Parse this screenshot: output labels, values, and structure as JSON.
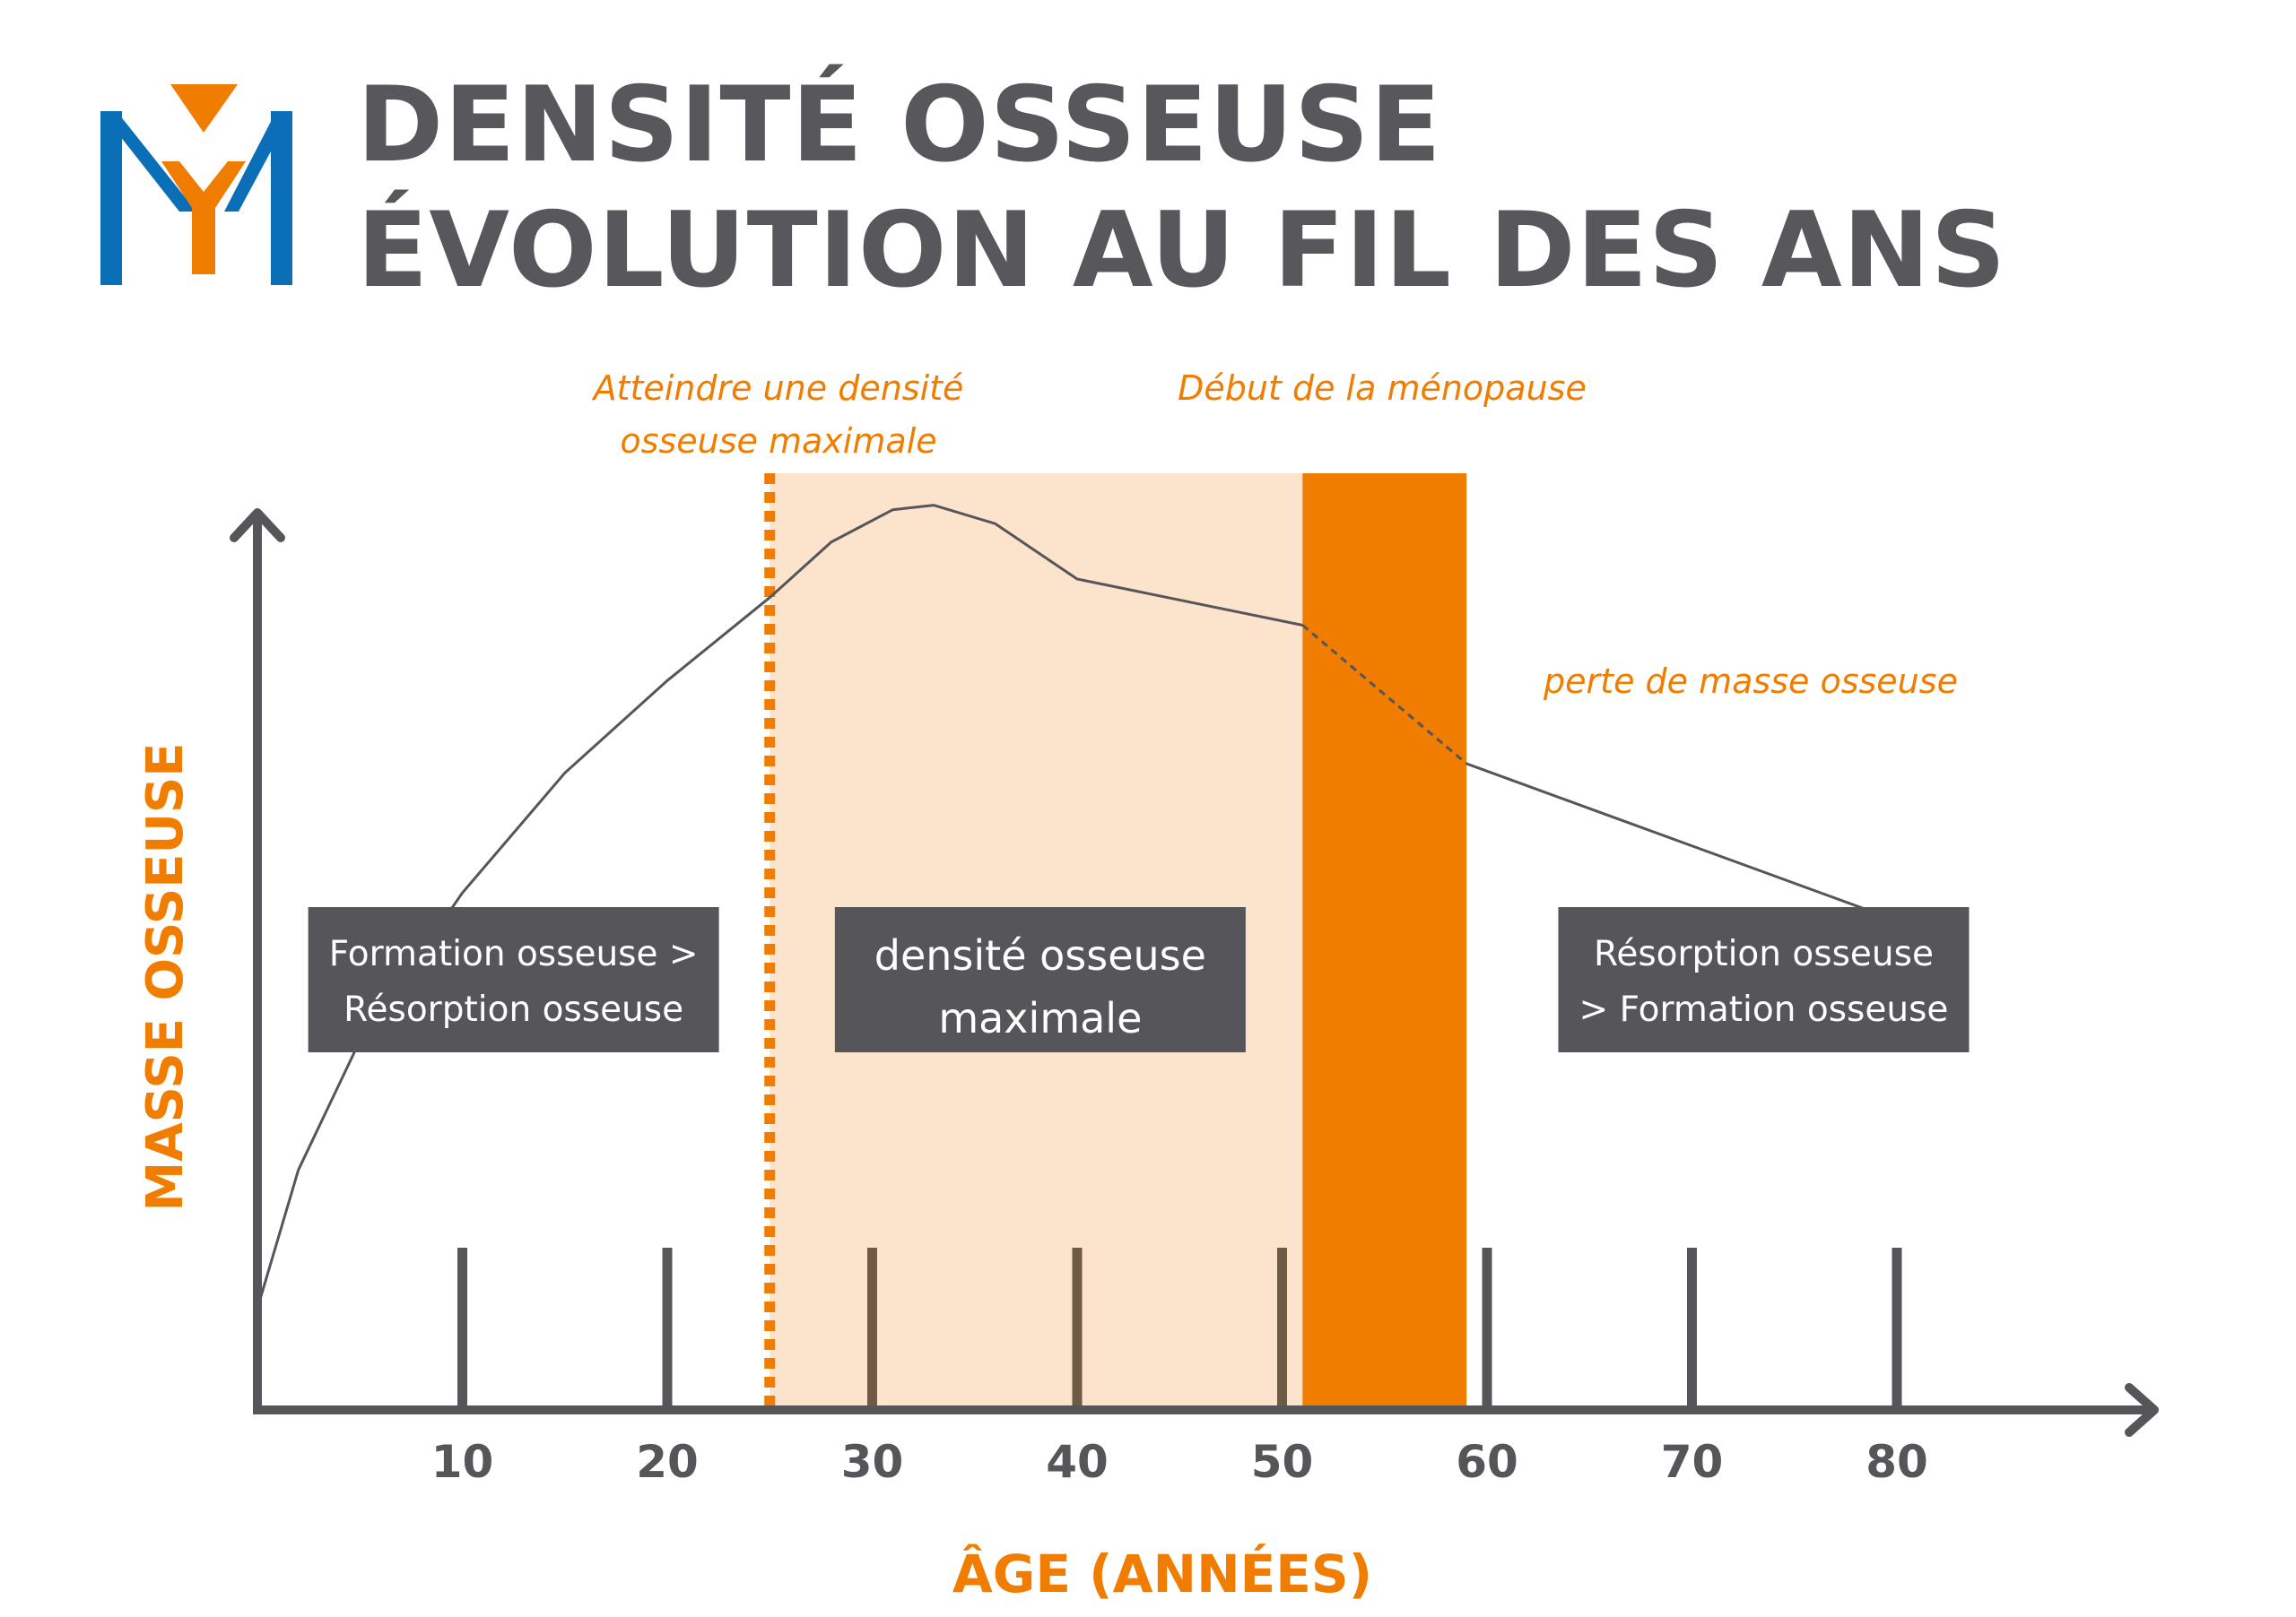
{
  "header": {
    "title_line1": "DENSITÉ OSSEUSE",
    "title_line2": "ÉVOLUTION AU FIL DES ANS",
    "logo_icon": "my-monogram-logo"
  },
  "colors": {
    "title": "#57575c",
    "orange": "#f07c00",
    "band_light": "#fbe3cc",
    "box": "#55555a",
    "axis": "#55555a",
    "curve": "#55555a",
    "brand_blue": "#0b6fb8"
  },
  "chart_data": {
    "type": "line",
    "title": "DENSITÉ OSSEUSE ÉVOLUTION AU FIL DES ANS",
    "xlabel": "ÂGE (ANNÉES)",
    "ylabel": "MASSE OSSEUSE",
    "xlim": [
      0,
      93
    ],
    "ylim": [
      0,
      100
    ],
    "x_ticks": [
      10,
      20,
      30,
      40,
      50,
      60,
      70,
      80
    ],
    "grid": false,
    "curve": [
      {
        "x": 0,
        "y": 11
      },
      {
        "x": 2,
        "y": 26
      },
      {
        "x": 5,
        "y": 40
      },
      {
        "x": 10,
        "y": 56
      },
      {
        "x": 15,
        "y": 69
      },
      {
        "x": 20,
        "y": 79
      },
      {
        "x": 25,
        "y": 88
      },
      {
        "x": 28,
        "y": 94
      },
      {
        "x": 31,
        "y": 97.5
      },
      {
        "x": 33,
        "y": 98
      },
      {
        "x": 36,
        "y": 96
      },
      {
        "x": 40,
        "y": 90
      },
      {
        "x": 51,
        "y": 85
      },
      {
        "x": 59,
        "y": 70
      },
      {
        "x": 80,
        "y": 53
      }
    ],
    "dashed_segment": {
      "from_x": 51,
      "to_x": 59
    },
    "regions": [
      {
        "name": "peak-density-band",
        "x_start": 25,
        "x_end": 51,
        "color": "#fbe3cc"
      },
      {
        "name": "menopause-band",
        "x_start": 51,
        "x_end": 59,
        "color": "#f07c00"
      }
    ],
    "vline": {
      "x": 25,
      "style": "dotted",
      "color": "#f07c00"
    },
    "annotations": [
      {
        "text_lines": [
          "Atteindre une densité",
          "osseuse maximale"
        ],
        "x": 25
      },
      {
        "text_lines": [
          "Début de la ménopause"
        ],
        "x": 55
      },
      {
        "text_lines": [
          "perte de masse osseuse"
        ],
        "x": 73
      }
    ],
    "phase_boxes": [
      {
        "lines": [
          "Formation osseuse >",
          "Résorption osseuse"
        ],
        "x_center": 12.5
      },
      {
        "lines": [
          "densité osseuse",
          "maximale"
        ],
        "x_center": 38.2
      },
      {
        "lines": [
          "Résorption osseuse",
          "> Formation osseuse"
        ],
        "x_center": 73.5
      }
    ]
  }
}
